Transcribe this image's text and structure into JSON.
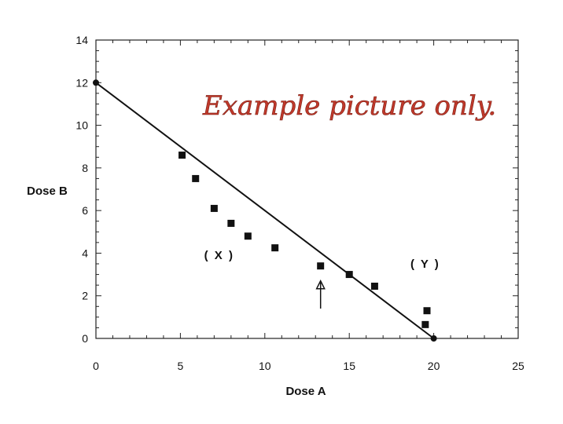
{
  "watermark": "Example picture only.",
  "chart_data": {
    "type": "scatter",
    "title": "",
    "xlabel": "Dose A",
    "ylabel": "Dose B",
    "xlim": [
      0,
      25
    ],
    "ylim": [
      0,
      14
    ],
    "xticks": [
      0,
      5,
      10,
      15,
      20,
      25
    ],
    "yticks": [
      0,
      2,
      4,
      6,
      8,
      10,
      12,
      14
    ],
    "grid": false,
    "series": [
      {
        "marker": "square",
        "color": "#111111",
        "x": [
          5.1,
          5.9,
          7.0,
          8.0,
          9.0,
          10.6,
          13.3,
          15.0,
          16.5,
          19.6,
          19.5
        ],
        "y": [
          8.6,
          7.5,
          6.1,
          5.4,
          4.8,
          4.25,
          3.4,
          3.0,
          2.45,
          1.3,
          0.65
        ]
      }
    ],
    "line": {
      "x": [
        0,
        20
      ],
      "y": [
        12,
        0
      ],
      "endpoint_markers": "circle"
    },
    "annotations": [
      {
        "text": "( X )",
        "x": 7.3,
        "y": 3.9
      },
      {
        "text": "( Y )",
        "x": 19.5,
        "y": 3.5
      }
    ],
    "arrow": {
      "x": 13.3,
      "y_from": 1.4,
      "y_to": 2.7
    }
  }
}
